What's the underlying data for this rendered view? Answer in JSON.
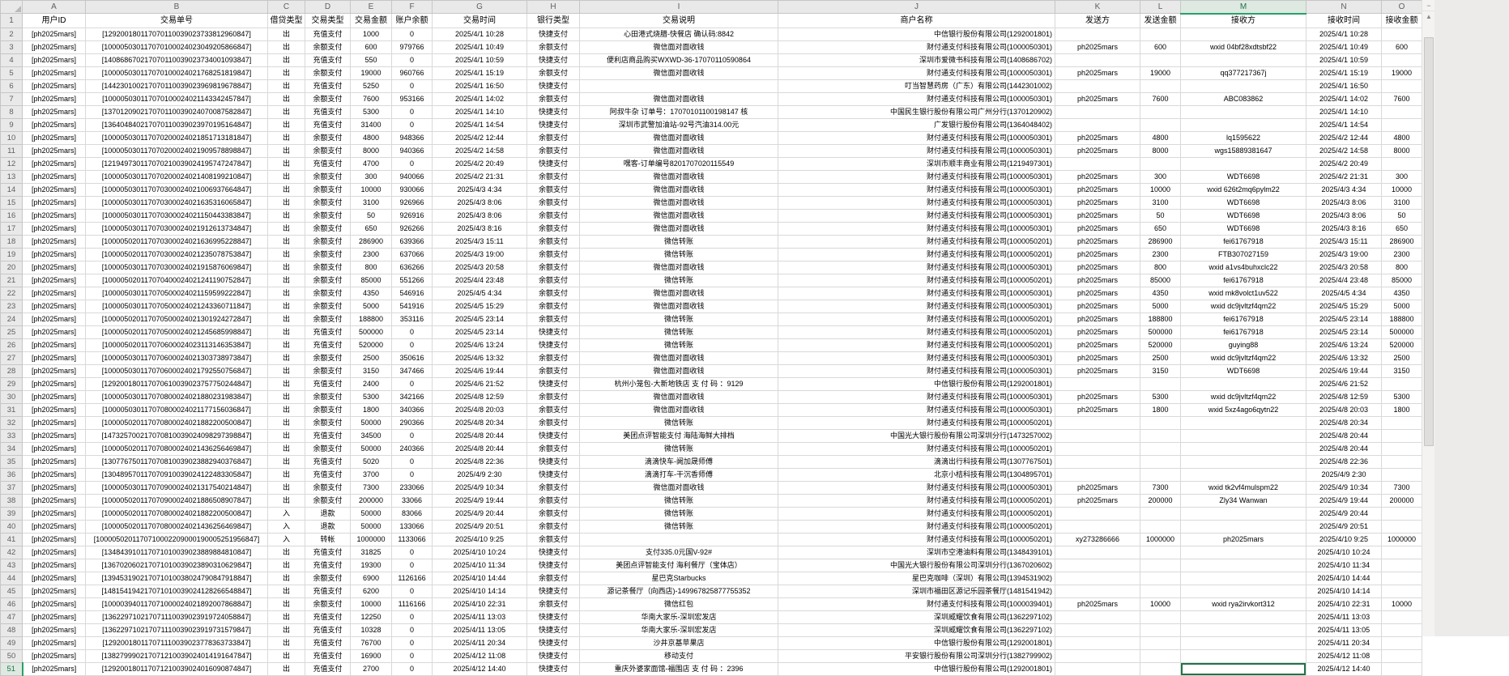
{
  "sheet": {
    "selected_column": "M",
    "selected_row": "51",
    "active_cell": "M51",
    "column_letters": [
      "A",
      "B",
      "C",
      "D",
      "E",
      "F",
      "G",
      "H",
      "I",
      "J",
      "K",
      "L",
      "M",
      "N",
      "O"
    ],
    "header_row": [
      "用户ID",
      "交易单号",
      "借贷类型",
      "交易类型",
      "交易金额",
      "账户余额",
      "交易时间",
      "银行类型",
      "交易说明",
      "商户名称",
      "发送方",
      "发送金额",
      "接收方",
      "接收时间",
      "接收金额"
    ],
    "first_row_number": 2,
    "rows": [
      [
        "[ph2025mars]",
        "[129200180117070110039023733812960847]",
        "出",
        "充值支付",
        "1000",
        "0",
        "2025/4/1 10:28",
        "快捷支付",
        "心田港式烧腊-快餐店 确认码:8842",
        "中信银行股份有限公司(1292001801)",
        "",
        "",
        "",
        "2025/4/1 10:28",
        ""
      ],
      [
        "[ph2025mars]",
        "[100005030117070100024023049205866847]",
        "出",
        "余额支付",
        "600",
        "979766",
        "2025/4/1 10:49",
        "余额支付",
        "微信面对面收钱",
        "财付通支付科技有限公司(1000050301)",
        "ph2025mars",
        "600",
        "wxid 04bf28xdtsbf22",
        "2025/4/1 10:49",
        "600"
      ],
      [
        "[ph2025mars]",
        "[140868670217070110039023734001093847]",
        "出",
        "充值支付",
        "550",
        "0",
        "2025/4/1 10:59",
        "快捷支付",
        "便利店商品购买WXWD-36-17070110590864",
        "深圳市爱微书科技有限公司(1408686702)",
        "",
        "",
        "",
        "2025/4/1 10:59",
        ""
      ],
      [
        "[ph2025mars]",
        "[100005030117070100024021768251819847]",
        "出",
        "余额支付",
        "19000",
        "960766",
        "2025/4/1 15:19",
        "余额支付",
        "微信面对面收钱",
        "财付通支付科技有限公司(1000050301)",
        "ph2025mars",
        "19000",
        "qq377217367j",
        "2025/4/1 15:19",
        "19000"
      ],
      [
        "[ph2025mars]",
        "[144230100217070110039023969819678847]",
        "出",
        "充值支付",
        "5250",
        "0",
        "2025/4/1 16:50",
        "快捷支付",
        "",
        "叮当智慧药房（广东）有限公司(1442301002)",
        "",
        "",
        "",
        "2025/4/1 16:50",
        ""
      ],
      [
        "[ph2025mars]",
        "[100005030117070100024021143342457847]",
        "出",
        "余额支付",
        "7600",
        "953166",
        "2025/4/1 14:02",
        "余额支付",
        "微信面对面收钱",
        "财付通支付科技有限公司(1000050301)",
        "ph2025mars",
        "7600",
        "ABC083862",
        "2025/4/1 14:02",
        "7600"
      ],
      [
        "[ph2025mars]",
        "[137012090217070110039024070087582847]",
        "出",
        "充值支付",
        "5300",
        "0",
        "2025/4/1 14:10",
        "快捷支付",
        "阿叔牛杂 订单号：17070101100198147 核",
        "中国民生银行股份有限公司广州分行(1370120902)",
        "",
        "",
        "",
        "2025/4/1 14:10",
        ""
      ],
      [
        "[ph2025mars]",
        "[136404840217070110039023970195164847]",
        "出",
        "充值支付",
        "31400",
        "0",
        "2025/4/1 14:54",
        "快捷支付",
        "深圳市武警加油站-92号汽油314.00元",
        "广发银行股份有限公司(1364048402)",
        "",
        "",
        "",
        "2025/4/1 14:54",
        ""
      ],
      [
        "[ph2025mars]",
        "[100005030117070200024021851713181847]",
        "出",
        "余额支付",
        "4800",
        "948366",
        "2025/4/2 12:44",
        "余额支付",
        "微信面对面收钱",
        "财付通支付科技有限公司(1000050301)",
        "ph2025mars",
        "4800",
        "lq1595622",
        "2025/4/2 12:44",
        "4800"
      ],
      [
        "[ph2025mars]",
        "[100005030117070200024021909578898847]",
        "出",
        "余额支付",
        "8000",
        "940366",
        "2025/4/2 14:58",
        "余额支付",
        "微信面对面收钱",
        "财付通支付科技有限公司(1000050301)",
        "ph2025mars",
        "8000",
        "wgs15889381647",
        "2025/4/2 14:58",
        "8000"
      ],
      [
        "[ph2025mars]",
        "[121949730117070210039024195747247847]",
        "出",
        "充值支付",
        "4700",
        "0",
        "2025/4/2 20:49",
        "快捷支付",
        "嘿客-订单编号8201707020115549",
        "深圳市顺丰商业有限公司(1219497301)",
        "",
        "",
        "",
        "2025/4/2 20:49",
        ""
      ],
      [
        "[ph2025mars]",
        "[100005030117070200024021408199210847]",
        "出",
        "余额支付",
        "300",
        "940066",
        "2025/4/2 21:31",
        "余额支付",
        "微信面对面收钱",
        "财付通支付科技有限公司(1000050301)",
        "ph2025mars",
        "300",
        "WDT6698",
        "2025/4/2 21:31",
        "300"
      ],
      [
        "[ph2025mars]",
        "[100005030117070300024021006937664847]",
        "出",
        "余额支付",
        "10000",
        "930066",
        "2025/4/3 4:34",
        "余额支付",
        "微信面对面收钱",
        "财付通支付科技有限公司(1000050301)",
        "ph2025mars",
        "10000",
        "wxid 626t2mq6pylm22",
        "2025/4/3 4:34",
        "10000"
      ],
      [
        "[ph2025mars]",
        "[100005030117070300024021635316065847]",
        "出",
        "余额支付",
        "3100",
        "926966",
        "2025/4/3 8:06",
        "余额支付",
        "微信面对面收钱",
        "财付通支付科技有限公司(1000050301)",
        "ph2025mars",
        "3100",
        "WDT6698",
        "2025/4/3 8:06",
        "3100"
      ],
      [
        "[ph2025mars]",
        "[100005030117070300024021150443383847]",
        "出",
        "余额支付",
        "50",
        "926916",
        "2025/4/3 8:06",
        "余额支付",
        "微信面对面收钱",
        "财付通支付科技有限公司(1000050301)",
        "ph2025mars",
        "50",
        "WDT6698",
        "2025/4/3 8:06",
        "50"
      ],
      [
        "[ph2025mars]",
        "[100005030117070300024021912613734847]",
        "出",
        "余额支付",
        "650",
        "926266",
        "2025/4/3 8:16",
        "余额支付",
        "微信面对面收钱",
        "财付通支付科技有限公司(1000050301)",
        "ph2025mars",
        "650",
        "WDT6698",
        "2025/4/3 8:16",
        "650"
      ],
      [
        "[ph2025mars]",
        "[100005020117070300024021636995228847]",
        "出",
        "余额支付",
        "286900",
        "639366",
        "2025/4/3 15:11",
        "余额支付",
        "微信转账",
        "财付通支付科技有限公司(1000050201)",
        "ph2025mars",
        "286900",
        "fei61767918",
        "2025/4/3 15:11",
        "286900"
      ],
      [
        "[ph2025mars]",
        "[100005020117070300024021235078753847]",
        "出",
        "余额支付",
        "2300",
        "637066",
        "2025/4/3 19:00",
        "余额支付",
        "微信转账",
        "财付通支付科技有限公司(1000050201)",
        "ph2025mars",
        "2300",
        "FTB307027159",
        "2025/4/3 19:00",
        "2300"
      ],
      [
        "[ph2025mars]",
        "[100005030117070300024021915876069847]",
        "出",
        "余额支付",
        "800",
        "636266",
        "2025/4/3 20:58",
        "余额支付",
        "微信面对面收钱",
        "财付通支付科技有限公司(1000050301)",
        "ph2025mars",
        "800",
        "wxid a1vs4buhxclc22",
        "2025/4/3 20:58",
        "800"
      ],
      [
        "[ph2025mars]",
        "[100005020117070400024021241190752847]",
        "出",
        "余额支付",
        "85000",
        "551266",
        "2025/4/4 23:48",
        "余额支付",
        "微信转账",
        "财付通支付科技有限公司(1000050201)",
        "ph2025mars",
        "85000",
        "fei61767918",
        "2025/4/4 23:48",
        "85000"
      ],
      [
        "[ph2025mars]",
        "[100005030117070500024021159599222847]",
        "出",
        "余额支付",
        "4350",
        "546916",
        "2025/4/5 4:34",
        "余额支付",
        "微信面对面收钱",
        "财付通支付科技有限公司(1000050301)",
        "ph2025mars",
        "4350",
        "wxid mk8volct1uv522",
        "2025/4/5 4:34",
        "4350"
      ],
      [
        "[ph2025mars]",
        "[100005030117070500024021243360711847]",
        "出",
        "余额支付",
        "5000",
        "541916",
        "2025/4/5 15:29",
        "余额支付",
        "微信面对面收钱",
        "财付通支付科技有限公司(1000050301)",
        "ph2025mars",
        "5000",
        "wxid dc9jvltzf4qm22",
        "2025/4/5 15:29",
        "5000"
      ],
      [
        "[ph2025mars]",
        "[100005020117070500024021301924272847]",
        "出",
        "余额支付",
        "188800",
        "353116",
        "2025/4/5 23:14",
        "余额支付",
        "微信转账",
        "财付通支付科技有限公司(1000050201)",
        "ph2025mars",
        "188800",
        "fei61767918",
        "2025/4/5 23:14",
        "188800"
      ],
      [
        "[ph2025mars]",
        "[100005020117070500024021245685998847]",
        "出",
        "充值支付",
        "500000",
        "0",
        "2025/4/5 23:14",
        "快捷支付",
        "微信转账",
        "财付通支付科技有限公司(1000050201)",
        "ph2025mars",
        "500000",
        "fei61767918",
        "2025/4/5 23:14",
        "500000"
      ],
      [
        "[ph2025mars]",
        "[100005020117070600024023113146353847]",
        "出",
        "充值支付",
        "520000",
        "0",
        "2025/4/6 13:24",
        "快捷支付",
        "微信转账",
        "财付通支付科技有限公司(1000050201)",
        "ph2025mars",
        "520000",
        "guying88",
        "2025/4/6 13:24",
        "520000"
      ],
      [
        "[ph2025mars]",
        "[100005030117070600024021303738973847]",
        "出",
        "余额支付",
        "2500",
        "350616",
        "2025/4/6 13:32",
        "余额支付",
        "微信面对面收钱",
        "财付通支付科技有限公司(1000050301)",
        "ph2025mars",
        "2500",
        "wxid dc9jvltzf4qm22",
        "2025/4/6 13:32",
        "2500"
      ],
      [
        "[ph2025mars]",
        "[100005030117070600024021792550756847]",
        "出",
        "余额支付",
        "3150",
        "347466",
        "2025/4/6 19:44",
        "余额支付",
        "微信面对面收钱",
        "财付通支付科技有限公司(1000050301)",
        "ph2025mars",
        "3150",
        "WDT6698",
        "2025/4/6 19:44",
        "3150"
      ],
      [
        "[ph2025mars]",
        "[129200180117070610039023757750244847]",
        "出",
        "充值支付",
        "2400",
        "0",
        "2025/4/6 21:52",
        "快捷支付",
        "杭州小笼包-大新地铁店 支 付 码 ：9129",
        "中信银行股份有限公司(1292001801)",
        "",
        "",
        "",
        "2025/4/6 21:52",
        ""
      ],
      [
        "[ph2025mars]",
        "[100005030117070800024021880231983847]",
        "出",
        "余额支付",
        "5300",
        "342166",
        "2025/4/8 12:59",
        "余额支付",
        "微信面对面收钱",
        "财付通支付科技有限公司(1000050301)",
        "ph2025mars",
        "5300",
        "wxid dc9jvltzf4qm22",
        "2025/4/8 12:59",
        "5300"
      ],
      [
        "[ph2025mars]",
        "[100005030117070800024021177156036847]",
        "出",
        "余额支付",
        "1800",
        "340366",
        "2025/4/8 20:03",
        "余额支付",
        "微信面对面收钱",
        "财付通支付科技有限公司(1000050301)",
        "ph2025mars",
        "1800",
        "wxid 5xz4ago6qytn22",
        "2025/4/8 20:03",
        "1800"
      ],
      [
        "[ph2025mars]",
        "[100005020117070800024021882200500847]",
        "出",
        "余额支付",
        "50000",
        "290366",
        "2025/4/8 20:34",
        "余额支付",
        "微信转账",
        "财付通支付科技有限公司(1000050201)",
        "",
        "",
        "",
        "2025/4/8 20:34",
        ""
      ],
      [
        "[ph2025mars]",
        "[147325700217070810039024098297398847]",
        "出",
        "充值支付",
        "34500",
        "0",
        "2025/4/8 20:44",
        "快捷支付",
        "美团点评智能支付 海陆海鲜大排档",
        "中国光大银行股份有限公司深圳分行(1473257002)",
        "",
        "",
        "",
        "2025/4/8 20:44",
        ""
      ],
      [
        "[ph2025mars]",
        "[100005020117070800024021436256469847]",
        "出",
        "余额支付",
        "50000",
        "240366",
        "2025/4/8 20:44",
        "余额支付",
        "微信转账",
        "财付通支付科技有限公司(1000050201)",
        "",
        "",
        "",
        "2025/4/8 20:44",
        ""
      ],
      [
        "[ph2025mars]",
        "[130776750117070810039023882940376847]",
        "出",
        "充值支付",
        "5020",
        "0",
        "2025/4/8 22:36",
        "快捷支付",
        "滴滴快车-阙加晟师傅",
        "滴滴出行科技有限公司(1307767501)",
        "",
        "",
        "",
        "2025/4/8 22:36",
        ""
      ],
      [
        "[ph2025mars]",
        "[130489570117070910039024122483305847]",
        "出",
        "充值支付",
        "3700",
        "0",
        "2025/4/9 2:30",
        "快捷支付",
        "滴滴打车-干沉香师傅",
        "北京小桔科技有限公司(1304895701)",
        "",
        "",
        "",
        "2025/4/9 2:30",
        ""
      ],
      [
        "[ph2025mars]",
        "[100005030117070900024021317540214847]",
        "出",
        "余额支付",
        "7300",
        "233066",
        "2025/4/9 10:34",
        "余额支付",
        "微信面对面收钱",
        "财付通支付科技有限公司(1000050301)",
        "ph2025mars",
        "7300",
        "wxid tk2vf4mulspm22",
        "2025/4/9 10:34",
        "7300"
      ],
      [
        "[ph2025mars]",
        "[100005020117070900024021886508907847]",
        "出",
        "余额支付",
        "200000",
        "33066",
        "2025/4/9 19:44",
        "余额支付",
        "微信转账",
        "财付通支付科技有限公司(1000050201)",
        "ph2025mars",
        "200000",
        "Zly34 Wanwan",
        "2025/4/9 19:44",
        "200000"
      ],
      [
        "[ph2025mars]",
        "[100005020117070800024021882200500847]",
        "入",
        "退款",
        "50000",
        "83066",
        "2025/4/9 20:44",
        "余额支付",
        "微信转账",
        "财付通支付科技有限公司(1000050201)",
        "",
        "",
        "",
        "2025/4/9 20:44",
        ""
      ],
      [
        "[ph2025mars]",
        "[100005020117070800024021436256469847]",
        "入",
        "退款",
        "50000",
        "133066",
        "2025/4/9 20:51",
        "余额支付",
        "微信转账",
        "财付通支付科技有限公司(1000050201)",
        "",
        "",
        "",
        "2025/4/9 20:51",
        ""
      ],
      [
        "[ph2025mars]",
        "[1000050201170710002209000190005251956847]",
        "入",
        "转帐",
        "1000000",
        "1133066",
        "2025/4/10 9:25",
        "余额支付",
        "",
        "财付通支付科技有限公司(1000050201)",
        "xy273286666",
        "1000000",
        "ph2025mars",
        "2025/4/10 9:25",
        "1000000"
      ],
      [
        "[ph2025mars]",
        "[134843910117071010039023889884810847]",
        "出",
        "充值支付",
        "31825",
        "0",
        "2025/4/10 10:24",
        "快捷支付",
        "支付335.0元国V-92#",
        "深圳市空港油料有限公司(1348439101)",
        "",
        "",
        "",
        "2025/4/10 10:24",
        ""
      ],
      [
        "[ph2025mars]",
        "[136702060217071010039023890310629847]",
        "出",
        "充值支付",
        "19300",
        "0",
        "2025/4/10 11:34",
        "快捷支付",
        "美团点评智能支付 海利餐厅（宝体店）",
        "中国光大银行股份有限公司深圳分行(1367020602)",
        "",
        "",
        "",
        "2025/4/10 11:34",
        ""
      ],
      [
        "[ph2025mars]",
        "[139453190217071010038024790847918847]",
        "出",
        "余额支付",
        "6900",
        "1126166",
        "2025/4/10 14:44",
        "余额支付",
        "星巴克Starbucks",
        "星巴克咖啡（深圳）有限公司(1394531902)",
        "",
        "",
        "",
        "2025/4/10 14:44",
        ""
      ],
      [
        "[ph2025mars]",
        "[148154194217071010039024128266548847]",
        "出",
        "充值支付",
        "6200",
        "0",
        "2025/4/10 14:14",
        "快捷支付",
        "源记茶餐厅（向西店)-149967825877755352",
        "深圳市福田区源记乐园茶餐厅(1481541942)",
        "",
        "",
        "",
        "2025/4/10 14:14",
        ""
      ],
      [
        "[ph2025mars]",
        "[100003940117071000024021892007868847]",
        "出",
        "余额支付",
        "10000",
        "1116166",
        "2025/4/10 22:31",
        "余额支付",
        "微信红包",
        "财付通支付科技有限公司(1000039401)",
        "ph2025mars",
        "10000",
        "wxid rya2irvkort312",
        "2025/4/10 22:31",
        "10000"
      ],
      [
        "[ph2025mars]",
        "[136229710217071110039023919724058847]",
        "出",
        "充值支付",
        "12250",
        "0",
        "2025/4/11 13:03",
        "快捷支付",
        "华南大家乐-深圳宏发店",
        "深圳威耀饮食有限公司(1362297102)",
        "",
        "",
        "",
        "2025/4/11 13:03",
        ""
      ],
      [
        "[ph2025mars]",
        "[136229710217071110039023919731579847]",
        "出",
        "充值支付",
        "10328",
        "0",
        "2025/4/11 13:05",
        "快捷支付",
        "华南大家乐-深圳宏发店",
        "深圳威耀饮食有限公司(1362297102)",
        "",
        "",
        "",
        "2025/4/11 13:05",
        ""
      ],
      [
        "[ph2025mars]",
        "[129200180117071110039023778363733847]",
        "出",
        "充值支付",
        "76700",
        "0",
        "2025/4/11 20:34",
        "快捷支付",
        "沙井京基苹果店",
        "中信银行股份有限公司(1292001801)",
        "",
        "",
        "",
        "2025/4/11 20:34",
        ""
      ],
      [
        "[ph2025mars]",
        "[138279990217071210039024014191647847]",
        "出",
        "充值支付",
        "16900",
        "0",
        "2025/4/12 11:08",
        "快捷支付",
        "移动支付",
        "平安银行股份有限公司深圳分行(1382799902)",
        "",
        "",
        "",
        "2025/4/12 11:08",
        ""
      ],
      [
        "[ph2025mars]",
        "[129200180117071210039024016090874847]",
        "出",
        "充值支付",
        "2700",
        "0",
        "2025/4/12 14:40",
        "快捷支付",
        "重庆外婆家面馆-福围店 支 付 码 ：2396",
        "中信银行股份有限公司(1292001801)",
        "",
        "",
        "",
        "2025/4/12 14:40",
        ""
      ]
    ]
  },
  "scrollbar": {
    "collapse_glyph": "−",
    "up_arrow_glyph": "▲"
  },
  "colors": {
    "selection_green": "#217346",
    "selection_underline": "#27a266",
    "header_gray": "#e9e9e9",
    "gridline": "#d9d9d9"
  }
}
